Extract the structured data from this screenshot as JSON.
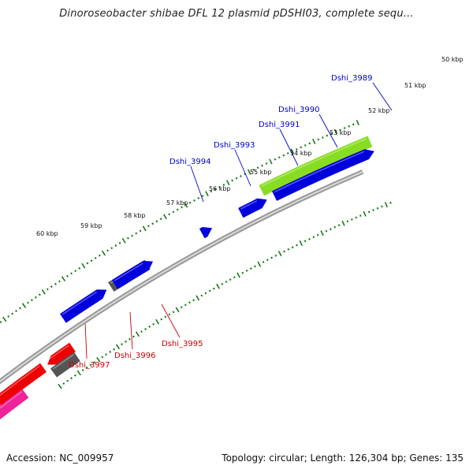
{
  "title": "Dinoroseobacter shibae DFL 12 plasmid pDSHI03, complete sequ...",
  "accession": "Accession: NC_009957",
  "summary": "Topology: circular; Length: 126,304 bp; Genes: 135",
  "scale": {
    "kbp_labels": [
      "50 kbp",
      "51 kbp",
      "52 kbp",
      "53 kbp",
      "54 kbp",
      "55 kbp",
      "56 kbp",
      "57 kbp",
      "58 kbp",
      "59 kbp",
      "60 kbp"
    ]
  },
  "genes_forward": [
    {
      "label": "Dshi_3989",
      "color": "#0000cc"
    },
    {
      "label": "Dshi_3990",
      "color": "#0000cc"
    },
    {
      "label": "Dshi_3991",
      "color": "#0000cc"
    },
    {
      "label": "Dshi_3993",
      "color": "#0000cc"
    },
    {
      "label": "Dshi_3994",
      "color": "#0000cc"
    }
  ],
  "genes_reverse": [
    {
      "label": "Dshi_3995",
      "color": "#cc0000"
    },
    {
      "label": "Dshi_3996",
      "color": "#cc0000"
    },
    {
      "label": "Dshi_3997",
      "color": "#cc0000"
    }
  ],
  "colors": {
    "forward_cds": "#0000dd",
    "reverse_cds": "#ee0000",
    "other_gene": "#555555",
    "green_feature": "#88dd22",
    "pink_feature": "#ee2299",
    "backbone": "#888888",
    "ticks": "#1a7a1a"
  }
}
